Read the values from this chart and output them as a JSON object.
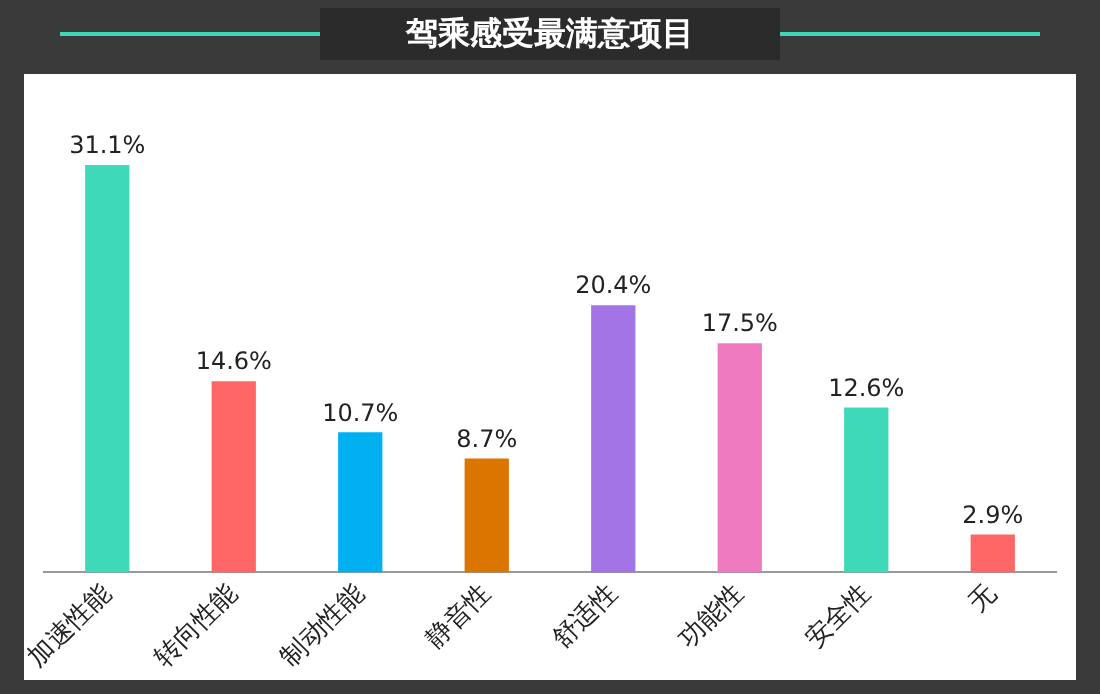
{
  "chart_data": {
    "type": "bar",
    "title": "驾乘感受最满意项目",
    "categories": [
      "加速性能",
      "转向性能",
      "制动性能",
      "静音性",
      "舒适性",
      "功能性",
      "安全性",
      "无"
    ],
    "values": [
      31.1,
      14.6,
      10.7,
      8.7,
      20.4,
      17.5,
      12.6,
      2.9
    ],
    "colors": [
      "#3dd9b9",
      "#ff6666",
      "#00b0f0",
      "#db7500",
      "#a374e6",
      "#f07ac0",
      "#3dd9b9",
      "#ff6666"
    ],
    "value_labels": [
      "31.1%",
      "14.6%",
      "10.7%",
      "8.7%",
      "20.4%",
      "17.5%",
      "12.6%",
      "2.9%"
    ],
    "grid": false,
    "legend": false
  }
}
